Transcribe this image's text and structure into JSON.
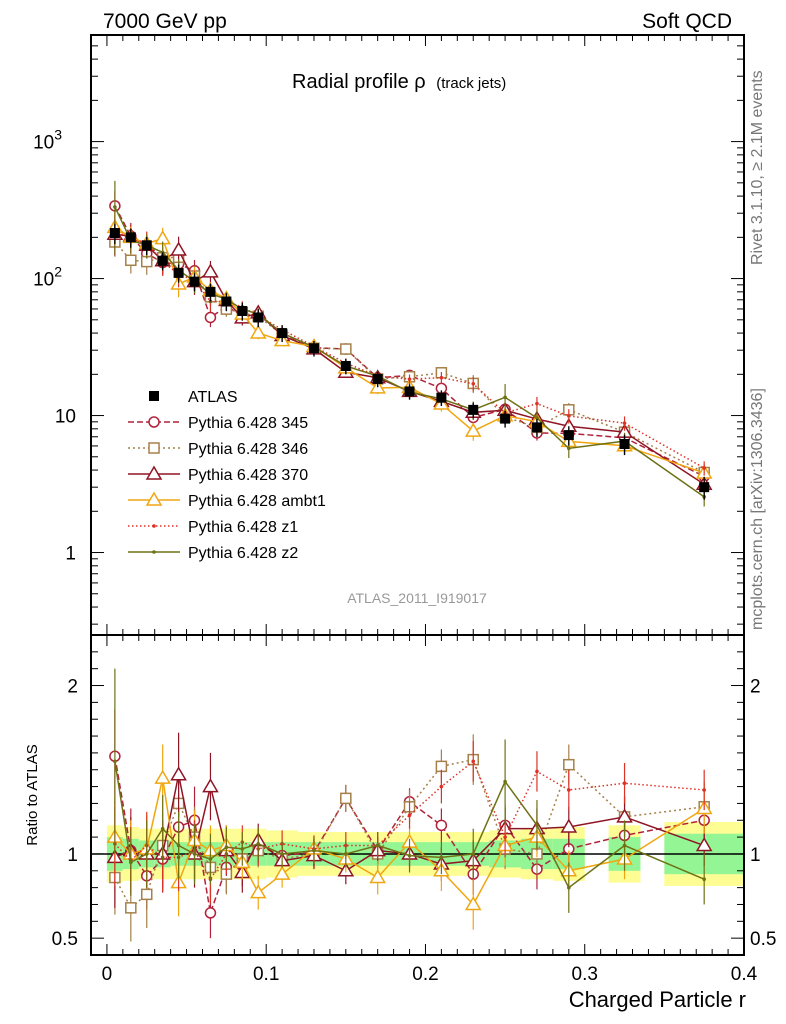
{
  "header": {
    "left": "7000 GeV pp",
    "right": "Soft QCD"
  },
  "side_labels": {
    "rivet": "Rivet 3.1.10, ≥ 2.1M events",
    "mcplots": "mcplots.cern.ch [arXiv:1306.3436]"
  },
  "chart_data": {
    "type": "scatter",
    "title": "Radial profile ρ",
    "title_suffix": "(track jets)",
    "analysis_id": "ATLAS_2011_I919017",
    "xlabel": "Charged Particle r",
    "ylabel_ratio": "Ratio to ATLAS",
    "x": [
      0.005,
      0.015,
      0.025,
      0.035,
      0.045,
      0.055,
      0.065,
      0.075,
      0.085,
      0.095,
      0.11,
      0.13,
      0.15,
      0.17,
      0.19,
      0.21,
      0.23,
      0.25,
      0.27,
      0.29,
      0.325,
      0.375
    ],
    "xlim": [
      -0.01,
      0.4
    ],
    "ylim_main": [
      0.25,
      6000
    ],
    "yscale_main": "log",
    "yticks_main": [
      {
        "v": 1,
        "label": "1"
      },
      {
        "v": 10,
        "label": "10"
      },
      {
        "v": 100,
        "label": "10",
        "exp": "2"
      },
      {
        "v": 1000,
        "label": "10",
        "exp": "3"
      }
    ],
    "ylim_ratio": [
      0.4,
      2.3
    ],
    "yticks_ratio": [
      {
        "v": 0.5,
        "label": "0.5"
      },
      {
        "v": 1,
        "label": "1"
      },
      {
        "v": 2,
        "label": "2"
      }
    ],
    "xticks": [
      {
        "v": 0,
        "label": "0"
      },
      {
        "v": 0.1,
        "label": "0.1"
      },
      {
        "v": 0.2,
        "label": "0.2"
      },
      {
        "v": 0.3,
        "label": "0.3"
      },
      {
        "v": 0.4,
        "label": "0.4"
      }
    ],
    "data": {
      "name": "ATLAS",
      "values": [
        215,
        200,
        175,
        135,
        110,
        95,
        80,
        68,
        58,
        52,
        40,
        31,
        23,
        18.5,
        15,
        13.5,
        11,
        9.5,
        8.2,
        7.2,
        6.2,
        3.0
      ],
      "band_stat": [
        0.1,
        0.09,
        0.08,
        0.08,
        0.07,
        0.07,
        0.07,
        0.07,
        0.07,
        0.07,
        0.07,
        0.07,
        0.07,
        0.07,
        0.07,
        0.07,
        0.07,
        0.08,
        0.09,
        0.09,
        0.1,
        0.12
      ],
      "band_tot": [
        0.17,
        0.16,
        0.15,
        0.15,
        0.15,
        0.15,
        0.15,
        0.15,
        0.15,
        0.15,
        0.14,
        0.13,
        0.13,
        0.13,
        0.13,
        0.13,
        0.13,
        0.14,
        0.15,
        0.16,
        0.17,
        0.19
      ]
    },
    "series": [
      {
        "name": "Pythia 6.428 345",
        "color": "#b2213a",
        "dash": "6,3",
        "marker": "circle",
        "ratio": [
          1.58,
          1.02,
          0.87,
          0.97,
          1.16,
          1.2,
          0.65,
          0.92,
          0.93,
          1.05,
          0.99,
          1.01,
          1.33,
          1.02,
          1.31,
          1.17,
          0.88,
          1.17,
          0.91,
          1.03,
          1.11,
          1.2
        ],
        "err": [
          0.28,
          0.25,
          0.2,
          0.2,
          0.2,
          0.2,
          0.15,
          0.15,
          0.12,
          0.1,
          0.08,
          0.08,
          0.08,
          0.08,
          0.08,
          0.1,
          0.12,
          0.12,
          0.12,
          0.12,
          0.12,
          0.12
        ]
      },
      {
        "name": "Pythia 6.428 346",
        "color": "#a5804a",
        "dash": "2,3",
        "marker": "square",
        "ratio": [
          0.86,
          0.68,
          0.76,
          1.05,
          1.3,
          1.1,
          0.92,
          0.88,
          0.97,
          1.02,
          0.97,
          1.0,
          1.33,
          1.0,
          1.28,
          1.52,
          1.56,
          1.03,
          1.0,
          1.53,
          1.22,
          1.28
        ],
        "err": [
          0.22,
          0.2,
          0.2,
          0.2,
          0.2,
          0.18,
          0.15,
          0.12,
          0.1,
          0.1,
          0.08,
          0.08,
          0.08,
          0.1,
          0.1,
          0.1,
          0.15,
          0.12,
          0.12,
          0.12,
          0.12,
          0.15
        ]
      },
      {
        "name": "Pythia 6.428 370",
        "color": "#8f1524",
        "dash": "",
        "marker": "triangle",
        "ratio": [
          0.98,
          1.02,
          1.0,
          1.0,
          1.47,
          1.0,
          1.4,
          1.02,
          0.89,
          1.08,
          0.96,
          0.99,
          0.9,
          1.02,
          1.0,
          0.94,
          0.96,
          1.15,
          1.15,
          1.16,
          1.22,
          1.05
        ],
        "err": [
          0.3,
          0.2,
          0.2,
          0.2,
          0.25,
          0.2,
          0.2,
          0.15,
          0.12,
          0.1,
          0.08,
          0.08,
          0.08,
          0.08,
          0.08,
          0.1,
          0.12,
          0.12,
          0.12,
          0.12,
          0.12,
          0.12
        ]
      },
      {
        "name": "Pythia 6.428 ambt1",
        "color": "#f0a610",
        "dash": "",
        "marker": "triangle",
        "ratio": [
          1.1,
          1.0,
          1.03,
          1.45,
          0.83,
          1.08,
          1.02,
          1.05,
          0.95,
          0.77,
          0.88,
          1.03,
          0.97,
          0.86,
          1.07,
          0.9,
          0.7,
          1.05,
          1.1,
          0.9,
          0.97,
          1.27
        ],
        "err": [
          0.25,
          0.2,
          0.2,
          0.2,
          0.2,
          0.18,
          0.15,
          0.12,
          0.1,
          0.1,
          0.08,
          0.08,
          0.08,
          0.1,
          0.1,
          0.12,
          0.15,
          0.12,
          0.12,
          0.12,
          0.12,
          0.15
        ]
      },
      {
        "name": "Pythia 6.428 z1",
        "color": "#dd3327",
        "dash": "1.5,2.5",
        "marker": "dot",
        "ratio": [
          1.06,
          0.96,
          1.05,
          0.98,
          0.98,
          1.02,
          0.85,
          1.0,
          1.07,
          1.03,
          1.06,
          1.03,
          1.05,
          1.05,
          1.23,
          1.4,
          1.55,
          1.1,
          1.49,
          1.38,
          1.42,
          1.38
        ],
        "err": [
          0.25,
          0.2,
          0.2,
          0.2,
          0.2,
          0.18,
          0.15,
          0.12,
          0.1,
          0.1,
          0.08,
          0.08,
          0.08,
          0.08,
          0.08,
          0.1,
          0.12,
          0.12,
          0.12,
          0.12,
          0.12,
          0.12
        ]
      },
      {
        "name": "Pythia 6.428 z2",
        "color": "#6f7115",
        "dash": "",
        "marker": "dot",
        "ratio": [
          1.55,
          0.95,
          1.0,
          1.15,
          1.05,
          1.0,
          0.97,
          1.04,
          1.03,
          1.06,
          1.0,
          1.02,
          1.0,
          1.05,
          0.99,
          0.98,
          1.0,
          1.43,
          1.17,
          0.8,
          1.05,
          0.85
        ],
        "err": [
          0.55,
          0.2,
          0.2,
          0.2,
          0.2,
          0.18,
          0.15,
          0.12,
          0.1,
          0.1,
          0.08,
          0.08,
          0.08,
          0.08,
          0.1,
          0.1,
          0.15,
          0.25,
          0.15,
          0.15,
          0.15,
          0.15
        ]
      }
    ]
  }
}
